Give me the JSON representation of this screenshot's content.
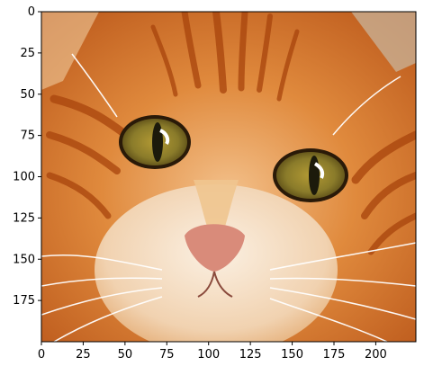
{
  "image": {
    "subject": "cat-face",
    "axis_frame_color": "#000000",
    "x_axis": {
      "range": [
        0,
        224
      ],
      "ticks": [
        0,
        25,
        50,
        75,
        100,
        125,
        150,
        175,
        200
      ],
      "tick_labels": [
        "0",
        "25",
        "50",
        "75",
        "100",
        "125",
        "150",
        "175",
        "200"
      ]
    },
    "y_axis": {
      "range": [
        0,
        200
      ],
      "inverted": true,
      "ticks": [
        0,
        25,
        50,
        75,
        100,
        125,
        150,
        175
      ],
      "tick_labels": [
        "0",
        "25",
        "50",
        "75",
        "100",
        "125",
        "150",
        "175"
      ]
    },
    "colors": {
      "fur_base": "#d9782a",
      "fur_dark": "#b34a10",
      "fur_light": "#f2c089",
      "fur_pale": "#f6e3cf",
      "eye_iris": "#8a7b2a",
      "eye_pupil": "#1c1a0b",
      "nose": "#d98b7a",
      "whisker": "#ffffff"
    }
  }
}
